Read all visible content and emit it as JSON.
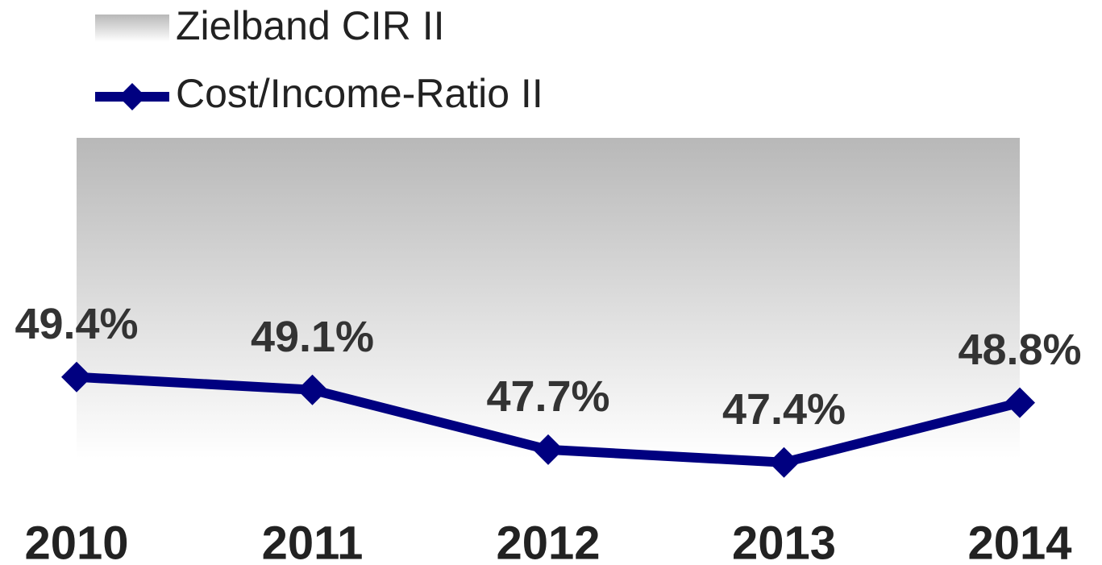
{
  "chart_data": {
    "type": "line",
    "categories": [
      "2010",
      "2011",
      "2012",
      "2013",
      "2014"
    ],
    "series": [
      {
        "name": "Cost/Income-Ratio II",
        "color": "#000080",
        "values": [
          49.4,
          49.1,
          47.7,
          47.4,
          48.8
        ],
        "value_labels": [
          "49.4%",
          "49.1%",
          "47.7%",
          "47.4%",
          "48.8%"
        ]
      }
    ],
    "band": {
      "name": "Zielband CIR II",
      "color": "#b8b8b8",
      "values": [
        47.5,
        55
      ]
    },
    "ylim": [
      46,
      56
    ]
  }
}
